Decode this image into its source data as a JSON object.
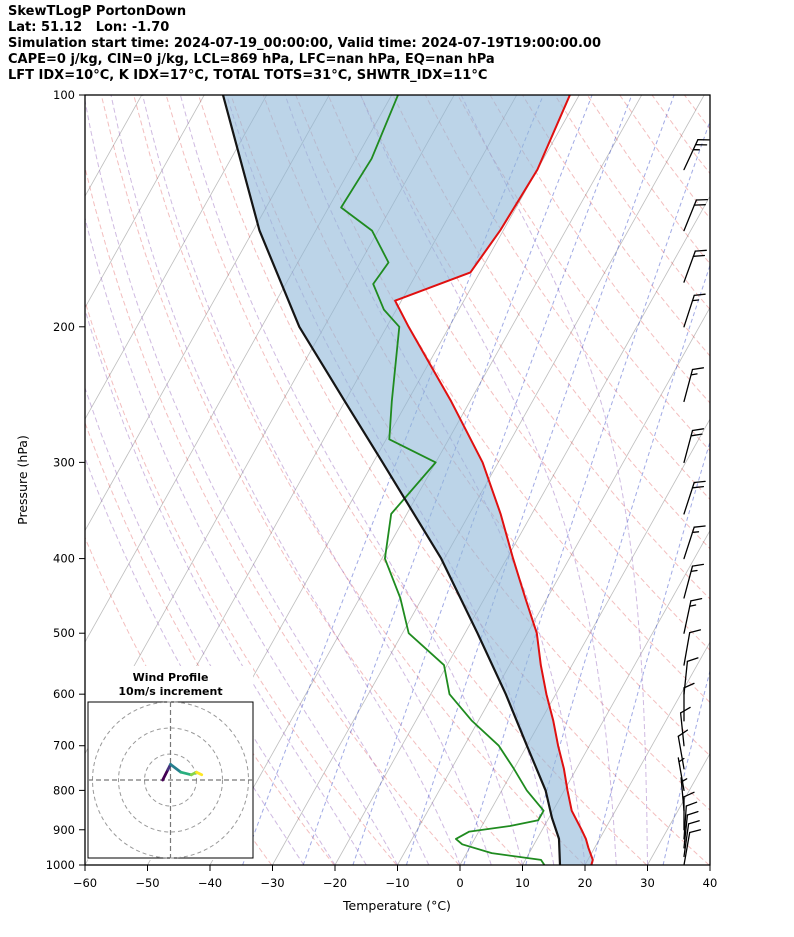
{
  "header": {
    "title": "SkewTLogP PortonDown",
    "location_line": "Lat: 51.12   Lon: -1.70",
    "time_line": "Simulation start time: 2024-07-19_00:00:00, Valid time: 2024-07-19T19:00:00.00",
    "indices_line1": "CAPE=0 j/kg, CIN=0 j/kg, LCL=869 hPa, LFC=nan hPa, EQ=nan hPa",
    "indices_line2": "LFT IDX=10°C, K IDX=17°C, TOTAL TOTS=31°C, SHWTR_IDX=11°C"
  },
  "chart_data": {
    "type": "line",
    "title": "Skew-T Log-P sounding",
    "axes": {
      "xlabel": "Temperature (°C)",
      "ylabel": "Pressure (hPa)",
      "xlim": [
        -60,
        40
      ],
      "p_top": 100,
      "p_bottom": 1000,
      "x_ticks": [
        -60,
        -50,
        -40,
        -30,
        -20,
        -10,
        0,
        10,
        20,
        30,
        40
      ],
      "y_ticks": [
        100,
        200,
        300,
        400,
        500,
        600,
        700,
        800,
        900,
        1000
      ]
    },
    "skew_deg_per_ln_p": 30,
    "series": [
      {
        "name": "temperature",
        "color": "#e01010",
        "width": 2.0,
        "points": [
          [
            1000,
            21
          ],
          [
            985,
            20.8
          ],
          [
            950,
            19
          ],
          [
            925,
            17.8
          ],
          [
            900,
            16.3
          ],
          [
            850,
            13
          ],
          [
            800,
            10.5
          ],
          [
            750,
            8
          ],
          [
            700,
            5
          ],
          [
            650,
            2
          ],
          [
            600,
            -1.5
          ],
          [
            550,
            -5
          ],
          [
            500,
            -8.5
          ],
          [
            450,
            -13.5
          ],
          [
            400,
            -19
          ],
          [
            350,
            -25
          ],
          [
            300,
            -32.5
          ],
          [
            250,
            -43
          ],
          [
            200,
            -56.5
          ],
          [
            185,
            -61
          ],
          [
            170,
            -51.5
          ],
          [
            150,
            -50.5
          ],
          [
            125,
            -50
          ],
          [
            100,
            -51.5
          ]
        ]
      },
      {
        "name": "dewpoint",
        "color": "#1f8b1f",
        "width": 1.8,
        "points": [
          [
            1000,
            13.5
          ],
          [
            985,
            12.5
          ],
          [
            965,
            4
          ],
          [
            940,
            -1.5
          ],
          [
            925,
            -3
          ],
          [
            905,
            -1.5
          ],
          [
            890,
            4.5
          ],
          [
            875,
            8.5
          ],
          [
            850,
            8.5
          ],
          [
            800,
            4
          ],
          [
            750,
            0
          ],
          [
            700,
            -4.5
          ],
          [
            650,
            -11
          ],
          [
            600,
            -17
          ],
          [
            550,
            -20.5
          ],
          [
            500,
            -29
          ],
          [
            450,
            -33.5
          ],
          [
            400,
            -39.5
          ],
          [
            350,
            -42.5
          ],
          [
            300,
            -40
          ],
          [
            280,
            -49.5
          ],
          [
            250,
            -52.5
          ],
          [
            200,
            -58
          ],
          [
            190,
            -62
          ],
          [
            176,
            -66
          ],
          [
            165,
            -65.5
          ],
          [
            150,
            -71
          ],
          [
            140,
            -78
          ],
          [
            121,
            -77.5
          ],
          [
            100,
            -79
          ]
        ]
      },
      {
        "name": "parcel",
        "color": "#151515",
        "width": 2.2,
        "points": [
          [
            1000,
            16
          ],
          [
            925,
            13.5
          ],
          [
            869,
            10.5
          ],
          [
            800,
            7
          ],
          [
            700,
            0
          ],
          [
            600,
            -8
          ],
          [
            500,
            -18
          ],
          [
            400,
            -30.5
          ],
          [
            300,
            -48.5
          ],
          [
            250,
            -60
          ],
          [
            200,
            -74
          ],
          [
            150,
            -89
          ],
          [
            100,
            -107
          ]
        ]
      }
    ],
    "shading": {
      "between": [
        "parcel",
        "temperature"
      ],
      "color": "#8fb8d8",
      "opacity": 0.6
    },
    "background": {
      "isotherms": {
        "color": "#bdbdbd",
        "from_c": -120,
        "to_c": 40,
        "step_c": 10
      },
      "dry_adiabats": {
        "color": "#d62728",
        "opacity": 0.3,
        "theta_k_from": 243,
        "theta_k_to": 473,
        "step_k": 10
      },
      "moist_adiabats": {
        "color": "#9467bd",
        "opacity": 0.45,
        "thetaw_c_from": -25,
        "thetaw_c_to": 30,
        "step_c": 5
      },
      "mixing_ratio": {
        "color": "#4455cc",
        "opacity": 0.5,
        "values_g_kg": [
          0.2,
          0.5,
          1,
          2,
          4,
          8,
          16,
          32,
          64
        ]
      }
    },
    "wind_barbs": {
      "color": "#000000",
      "levels": [
        [
          125,
          25,
          25
        ],
        [
          150,
          20,
          22
        ],
        [
          175,
          20,
          20
        ],
        [
          200,
          15,
          18
        ],
        [
          250,
          15,
          15
        ],
        [
          300,
          20,
          15
        ],
        [
          350,
          20,
          18
        ],
        [
          400,
          15,
          18
        ],
        [
          450,
          15,
          15
        ],
        [
          500,
          15,
          12
        ],
        [
          550,
          10,
          10
        ],
        [
          600,
          10,
          6
        ],
        [
          650,
          10,
          0
        ],
        [
          700,
          10,
          -6
        ],
        [
          750,
          10,
          -10
        ],
        [
          800,
          8,
          -10
        ],
        [
          850,
          8,
          -5
        ],
        [
          900,
          10,
          0
        ],
        [
          925,
          10,
          4
        ],
        [
          950,
          10,
          6
        ],
        [
          975,
          12,
          8
        ],
        [
          1000,
          12,
          10
        ]
      ]
    },
    "inset": {
      "title": "Wind Profile",
      "subtitle": "10m/s increment",
      "ring_interval_ms": 10,
      "rings_ms": [
        10,
        20,
        30
      ],
      "trace_segments": [
        {
          "color": "#440154",
          "points": [
            [
              -3,
              0
            ],
            [
              -1,
              4
            ]
          ]
        },
        {
          "color": "#46327e",
          "points": [
            [
              -1,
              4
            ],
            [
              0,
              6
            ]
          ]
        },
        {
          "color": "#277f8e",
          "points": [
            [
              0,
              6
            ],
            [
              4,
              3
            ]
          ]
        },
        {
          "color": "#29af7f",
          "points": [
            [
              4,
              3
            ],
            [
              8,
              2
            ]
          ]
        },
        {
          "color": "#85d44a",
          "points": [
            [
              8,
              2
            ],
            [
              10,
              3
            ]
          ]
        },
        {
          "color": "#fde725",
          "points": [
            [
              10,
              3
            ],
            [
              12,
              2
            ]
          ]
        }
      ]
    }
  }
}
